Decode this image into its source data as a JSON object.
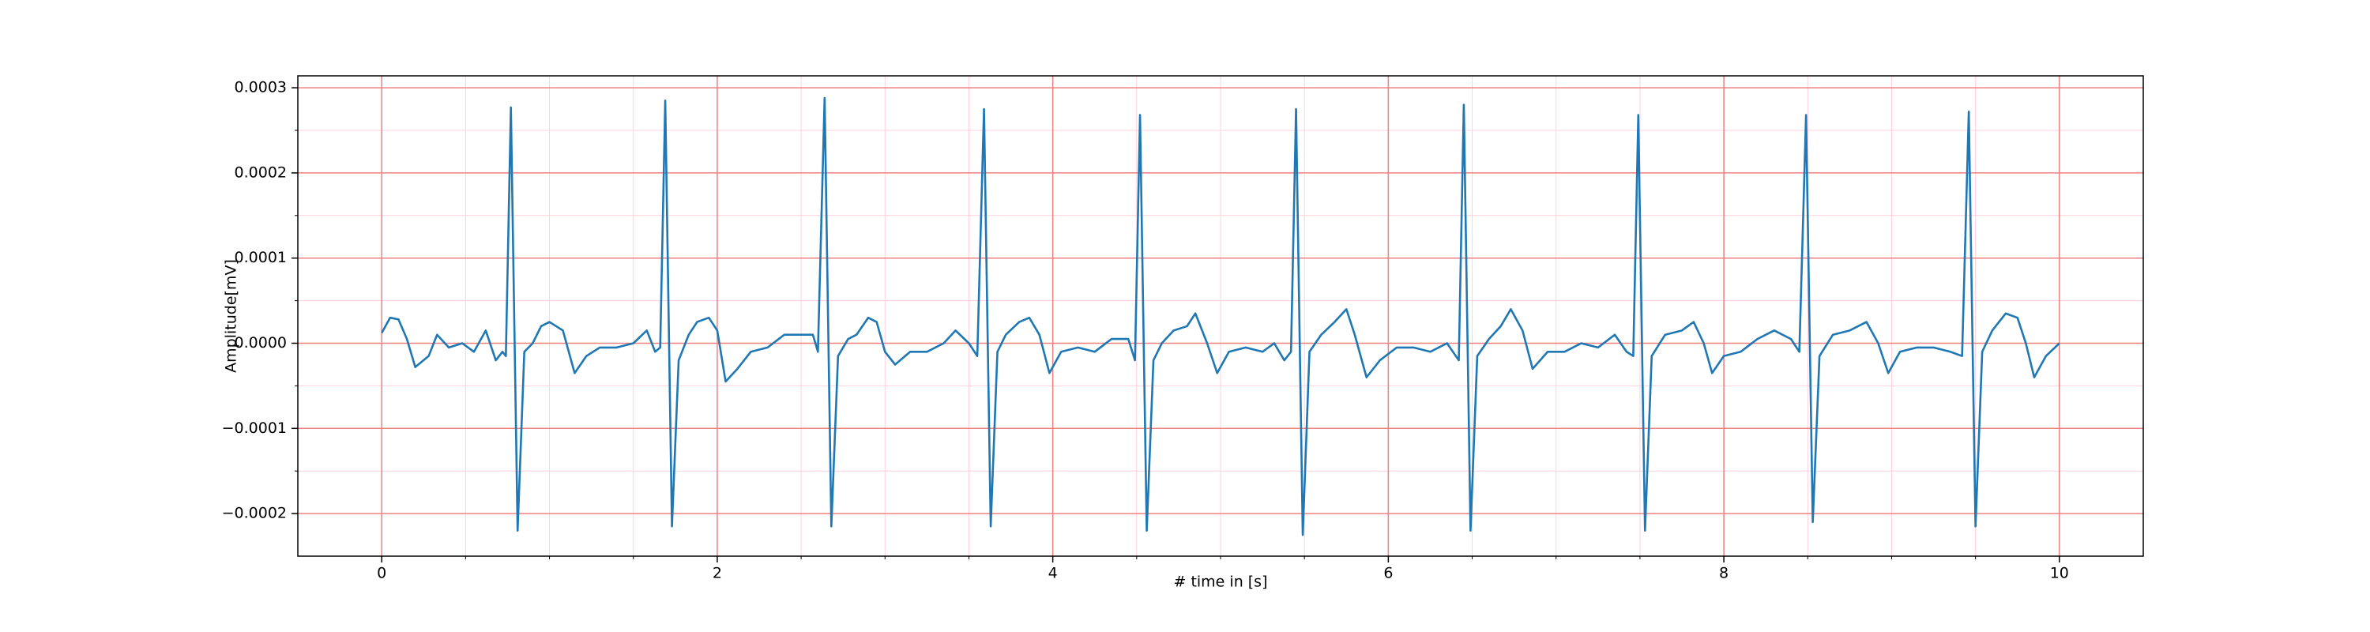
{
  "chart_data": {
    "type": "line",
    "xlabel": "# time in [s]",
    "ylabel": "Amplitude[mV]",
    "xlim": [
      -0.5,
      10.5
    ],
    "ylim": [
      -0.00025,
      0.000314
    ],
    "xticks": [
      0,
      2,
      4,
      6,
      8,
      10
    ],
    "yticks": [
      {
        "value": -0.0002,
        "label": "−0.0002"
      },
      {
        "value": -0.0001,
        "label": "−0.0001"
      },
      {
        "value": 0,
        "label": "0.0000"
      },
      0.0001,
      0.0002,
      0.0003
    ],
    "xminorticks": [
      0.5,
      1,
      1.5,
      2.5,
      3,
      3.5,
      4.5,
      5,
      5.5,
      6.5,
      7,
      7.5,
      8.5,
      9,
      9.5
    ],
    "yminorticks": [
      -0.00015,
      -5e-05,
      5e-05,
      0.00015,
      0.00025
    ],
    "grid": true,
    "grid_color": "#f08080",
    "minor_grid_color": "#ffd0dc",
    "series": [
      {
        "color": "#1f77b4",
        "x": [
          0,
          0.05,
          0.1,
          0.15,
          0.2,
          0.28,
          0.33,
          0.4,
          0.48,
          0.55,
          0.62,
          0.68,
          0.72,
          0.74,
          0.77,
          0.81,
          0.85,
          0.9,
          0.95,
          1.0,
          1.08,
          1.15,
          1.22,
          1.3,
          1.4,
          1.5,
          1.58,
          1.63,
          1.66,
          1.69,
          1.73,
          1.77,
          1.83,
          1.88,
          1.95,
          2.0,
          2.05,
          2.12,
          2.2,
          2.3,
          2.4,
          2.5,
          2.57,
          2.6,
          2.64,
          2.68,
          2.72,
          2.78,
          2.83,
          2.9,
          2.95,
          3.0,
          3.06,
          3.15,
          3.25,
          3.35,
          3.42,
          3.5,
          3.55,
          3.59,
          3.63,
          3.67,
          3.72,
          3.8,
          3.86,
          3.92,
          3.98,
          4.05,
          4.15,
          4.25,
          4.35,
          4.45,
          4.49,
          4.52,
          4.56,
          4.6,
          4.65,
          4.72,
          4.8,
          4.85,
          4.92,
          4.98,
          5.05,
          5.15,
          5.25,
          5.32,
          5.38,
          5.42,
          5.45,
          5.49,
          5.53,
          5.6,
          5.68,
          5.75,
          5.8,
          5.87,
          5.95,
          6.05,
          6.15,
          6.25,
          6.35,
          6.42,
          6.45,
          6.49,
          6.53,
          6.6,
          6.67,
          6.73,
          6.8,
          6.86,
          6.95,
          7.05,
          7.15,
          7.25,
          7.35,
          7.42,
          7.46,
          7.49,
          7.53,
          7.57,
          7.65,
          7.75,
          7.82,
          7.88,
          7.93,
          8.0,
          8.1,
          8.2,
          8.3,
          8.4,
          8.45,
          8.49,
          8.53,
          8.57,
          8.65,
          8.75,
          8.85,
          8.92,
          8.98,
          9.05,
          9.15,
          9.25,
          9.35,
          9.42,
          9.46,
          9.5,
          9.54,
          9.6,
          9.68,
          9.75,
          9.8,
          9.85,
          9.92,
          10.0
        ],
        "values": [
          1.2e-05,
          3e-05,
          2.8e-05,
          5e-06,
          -2.8e-05,
          -1.5e-05,
          1e-05,
          -5e-06,
          0,
          -1e-05,
          1.5e-05,
          -2e-05,
          -1e-05,
          -1.5e-05,
          0.000277,
          -0.00022,
          -1e-05,
          0,
          2e-05,
          2.5e-05,
          1.5e-05,
          -3.5e-05,
          -1.5e-05,
          -5e-06,
          -5e-06,
          0,
          1.5e-05,
          -1e-05,
          -5e-06,
          0.000285,
          -0.000215,
          -2e-05,
          1e-05,
          2.5e-05,
          3e-05,
          1.5e-05,
          -4.5e-05,
          -3e-05,
          -1e-05,
          -5e-06,
          1e-05,
          1e-05,
          1e-05,
          -1e-05,
          0.000288,
          -0.000215,
          -1.5e-05,
          5e-06,
          1e-05,
          3e-05,
          2.5e-05,
          -1e-05,
          -2.5e-05,
          -1e-05,
          -1e-05,
          0,
          1.5e-05,
          0,
          -1.5e-05,
          0.000275,
          -0.000215,
          -1e-05,
          1e-05,
          2.5e-05,
          3e-05,
          1e-05,
          -3.5e-05,
          -1e-05,
          -5e-06,
          -1e-05,
          5e-06,
          5e-06,
          -2e-05,
          0.000268,
          -0.00022,
          -2e-05,
          0,
          1.5e-05,
          2e-05,
          3.5e-05,
          0,
          -3.5e-05,
          -1e-05,
          -5e-06,
          -1e-05,
          0,
          -2e-05,
          -1e-05,
          0.000275,
          -0.000225,
          -1e-05,
          1e-05,
          2.5e-05,
          4e-05,
          1e-05,
          -4e-05,
          -2e-05,
          -5e-06,
          -5e-06,
          -1e-05,
          0,
          -2e-05,
          0.00028,
          -0.00022,
          -1.5e-05,
          5e-06,
          2e-05,
          4e-05,
          1.5e-05,
          -3e-05,
          -1e-05,
          -1e-05,
          0,
          -5e-06,
          1e-05,
          -1e-05,
          -1.5e-05,
          0.000268,
          -0.00022,
          -1.5e-05,
          1e-05,
          1.5e-05,
          2.5e-05,
          0,
          -3.5e-05,
          -1.5e-05,
          -1e-05,
          5e-06,
          1.5e-05,
          5e-06,
          -1e-05,
          0.000268,
          -0.00021,
          -1.5e-05,
          1e-05,
          1.5e-05,
          2.5e-05,
          0,
          -3.5e-05,
          -1e-05,
          -5e-06,
          -5e-06,
          -1e-05,
          -1.5e-05,
          0.000272,
          -0.000215,
          -1e-05,
          1.5e-05,
          3.5e-05,
          3e-05,
          0,
          -4e-05,
          -1.5e-05,
          0
        ]
      }
    ]
  }
}
